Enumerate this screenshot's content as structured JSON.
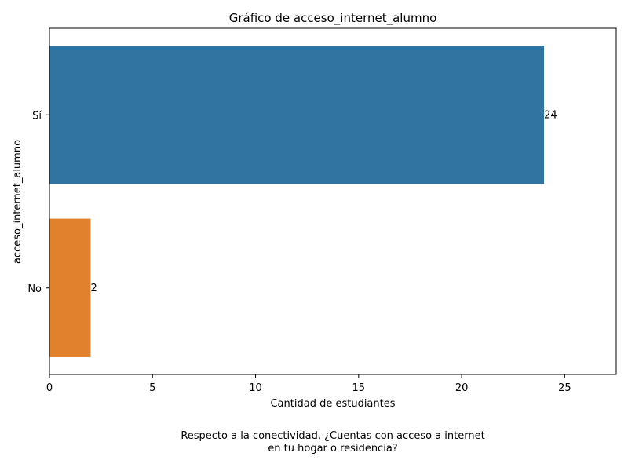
{
  "chart_data": {
    "type": "bar",
    "orientation": "horizontal",
    "title": "Gráfico de acceso_internet_alumno",
    "xlabel": "Cantidad de estudiantes",
    "ylabel": "acceso_internet_alumno",
    "categories": [
      "Sí",
      "No"
    ],
    "values": [
      24,
      2
    ],
    "data_labels": [
      "24",
      "2"
    ],
    "bar_colors": [
      "#3274a1",
      "#e1812c"
    ],
    "xlim": [
      0,
      27.5
    ],
    "xticks": [
      0,
      5,
      10,
      15,
      20,
      25
    ],
    "grid": false,
    "legend": "none"
  },
  "caption": {
    "line1": "Respecto a la conectividad, ¿Cuentas con acceso a internet",
    "line2": "en tu hogar o residencia?"
  }
}
